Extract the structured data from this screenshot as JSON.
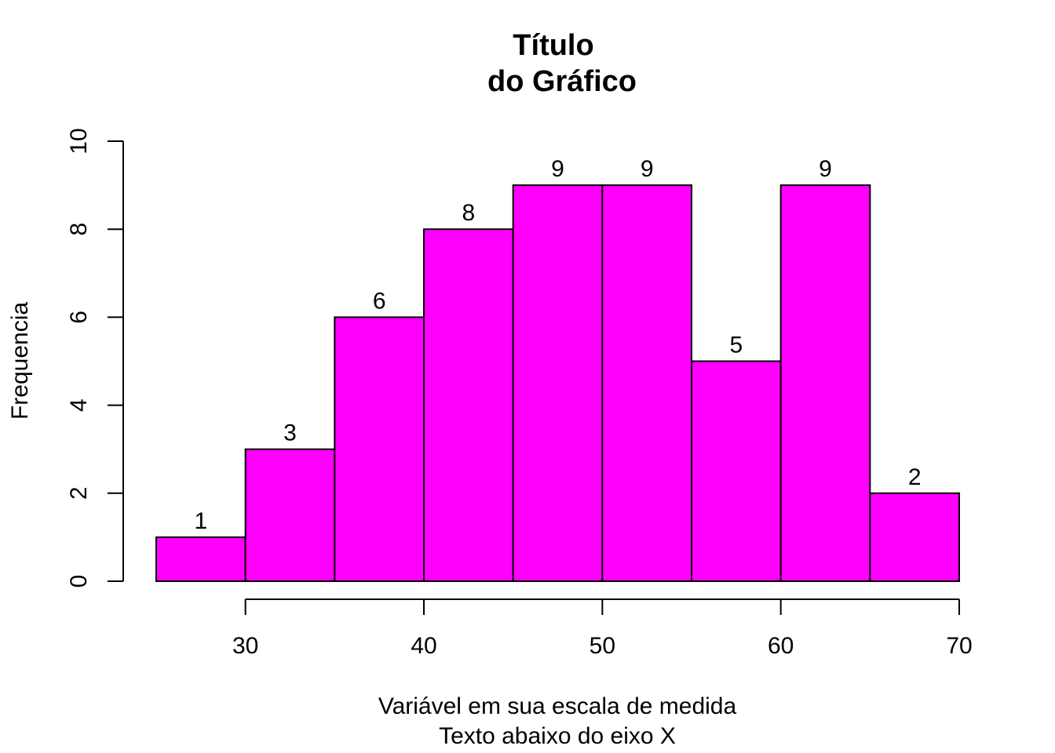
{
  "chart_data": {
    "type": "bar",
    "subtype": "histogram",
    "title_lines": [
      "Título",
      "do Gráfico"
    ],
    "xlabel_lines": [
      "Variável em sua escala de medida",
      "Texto abaixo do eixo X"
    ],
    "ylabel": "Frequencia",
    "bins": [
      {
        "start": 25,
        "end": 30,
        "count": 1
      },
      {
        "start": 30,
        "end": 35,
        "count": 3
      },
      {
        "start": 35,
        "end": 40,
        "count": 6
      },
      {
        "start": 40,
        "end": 45,
        "count": 8
      },
      {
        "start": 45,
        "end": 50,
        "count": 9
      },
      {
        "start": 50,
        "end": 55,
        "count": 9
      },
      {
        "start": 55,
        "end": 60,
        "count": 5
      },
      {
        "start": 60,
        "end": 65,
        "count": 9
      },
      {
        "start": 65,
        "end": 70,
        "count": 2
      }
    ],
    "count_labels": [
      "1",
      "3",
      "6",
      "8",
      "9",
      "9",
      "5",
      "9",
      "2"
    ],
    "x_ticks": [
      30,
      40,
      50,
      60,
      70
    ],
    "x_tick_labels": [
      "30",
      "40",
      "50",
      "60",
      "70"
    ],
    "y_ticks": [
      0,
      2,
      4,
      6,
      8,
      10
    ],
    "y_tick_labels": [
      "0",
      "2",
      "4",
      "6",
      "8",
      "10"
    ],
    "xlim": [
      25,
      70
    ],
    "ylim": [
      0,
      10
    ],
    "bar_color": "#ff00ff",
    "grid": false,
    "legend": "none"
  }
}
